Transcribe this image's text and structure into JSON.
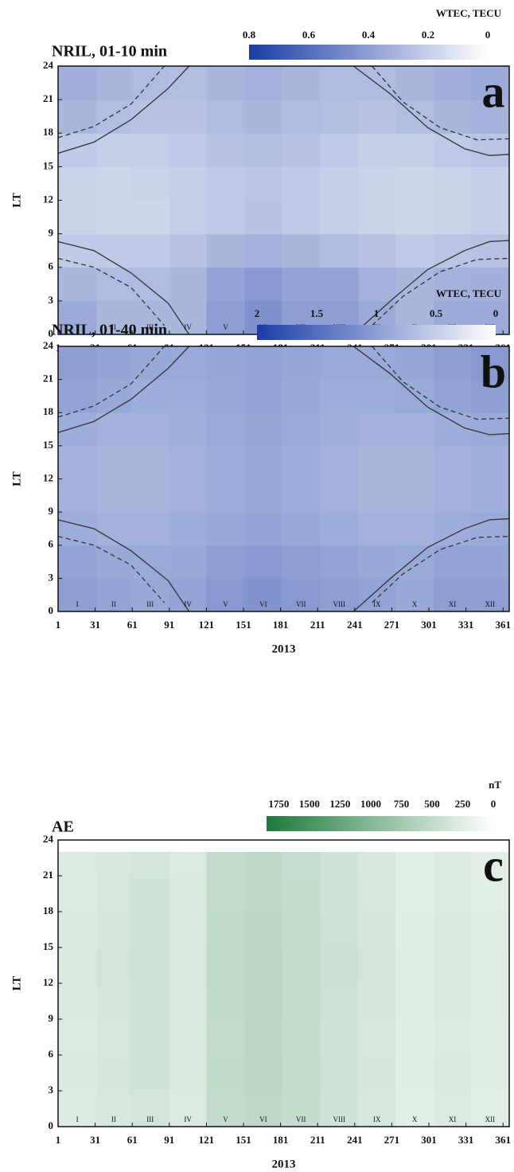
{
  "chart_data": [
    {
      "type": "heatmap",
      "title": "NRIL,  01-10 min",
      "panel_label": "a",
      "colorbar_title": "WTEC, TECU",
      "clim": [
        0.8,
        0
      ],
      "cticks": [
        0.8,
        0.6,
        0.4,
        0.2,
        0
      ],
      "colors": {
        "high": "#1a3da6",
        "low": "#ffffff"
      },
      "x_label": "2013",
      "y_label": "LT",
      "xlim": [
        1,
        366
      ],
      "ylim": [
        0,
        24
      ],
      "xticks": [
        1,
        31,
        61,
        91,
        121,
        151,
        181,
        211,
        241,
        271,
        301,
        331,
        361
      ],
      "yticks": [
        0,
        3,
        6,
        9,
        12,
        15,
        18,
        21,
        24
      ],
      "months": [
        "I",
        "II",
        "III",
        "IV",
        "V",
        "VI",
        "VII",
        "VIII",
        "IX",
        "X",
        "XI",
        "XII"
      ],
      "xbins": [
        1,
        32,
        60,
        91,
        121,
        152,
        182,
        213,
        244,
        274,
        305,
        335,
        366
      ],
      "ybins": [
        0,
        3,
        6,
        9,
        12,
        15,
        18,
        21,
        24
      ],
      "z": [
        [
          0.35,
          0.3,
          0.3,
          0.3,
          0.4,
          0.45,
          0.4,
          0.4,
          0.35,
          0.3,
          0.35,
          0.35
        ],
        [
          0.3,
          0.28,
          0.28,
          0.3,
          0.38,
          0.42,
          0.38,
          0.38,
          0.32,
          0.3,
          0.32,
          0.33
        ],
        [
          0.22,
          0.22,
          0.22,
          0.25,
          0.3,
          0.32,
          0.3,
          0.28,
          0.25,
          0.22,
          0.24,
          0.25
        ],
        [
          0.18,
          0.17,
          0.17,
          0.2,
          0.22,
          0.25,
          0.22,
          0.2,
          0.18,
          0.17,
          0.18,
          0.2
        ],
        [
          0.18,
          0.17,
          0.18,
          0.2,
          0.22,
          0.24,
          0.22,
          0.2,
          0.18,
          0.17,
          0.18,
          0.2
        ],
        [
          0.22,
          0.2,
          0.2,
          0.22,
          0.25,
          0.27,
          0.25,
          0.22,
          0.2,
          0.2,
          0.22,
          0.24
        ],
        [
          0.3,
          0.27,
          0.25,
          0.25,
          0.28,
          0.3,
          0.28,
          0.27,
          0.25,
          0.27,
          0.3,
          0.32
        ],
        [
          0.33,
          0.3,
          0.28,
          0.27,
          0.3,
          0.32,
          0.3,
          0.28,
          0.28,
          0.3,
          0.33,
          0.35
        ]
      ],
      "lines": [
        {
          "style": "solid",
          "x": [
            1,
            30,
            60,
            90,
            107
          ],
          "y": [
            16.2,
            17.2,
            19.2,
            22,
            24
          ]
        },
        {
          "style": "solid",
          "x": [
            240,
            270,
            300,
            330,
            350,
            366
          ],
          "y": [
            24,
            21.5,
            18.5,
            16.6,
            16,
            16.1
          ]
        },
        {
          "style": "solid",
          "x": [
            1,
            30,
            60,
            90,
            107
          ],
          "y": [
            8.3,
            7.5,
            5.5,
            2.8,
            0
          ]
        },
        {
          "style": "solid",
          "x": [
            240,
            270,
            300,
            330,
            350,
            366
          ],
          "y": [
            0,
            3,
            5.8,
            7.5,
            8.3,
            8.4
          ]
        },
        {
          "style": "dashed",
          "x": [
            1,
            30,
            60,
            87
          ],
          "y": [
            17.6,
            18.6,
            20.6,
            24
          ]
        },
        {
          "style": "dashed",
          "x": [
            255,
            280,
            310,
            340,
            366
          ],
          "y": [
            24,
            20.8,
            18.5,
            17.4,
            17.5
          ]
        },
        {
          "style": "dashed",
          "x": [
            1,
            30,
            60,
            87
          ],
          "y": [
            6.8,
            6,
            4.2,
            0.8
          ]
        },
        {
          "style": "dashed",
          "x": [
            255,
            280,
            310,
            340,
            366
          ],
          "y": [
            0.8,
            3.4,
            5.6,
            6.7,
            6.8
          ]
        }
      ]
    },
    {
      "type": "heatmap",
      "title": "NRIL,  01-40 min",
      "panel_label": "b",
      "colorbar_title": "WTEC, TECU",
      "clim": [
        2,
        0
      ],
      "cticks": [
        2,
        1.5,
        1,
        0.5,
        0
      ],
      "colors": {
        "high": "#1a3da6",
        "low": "#ffffff"
      },
      "x_label": "2013",
      "y_label": "LT",
      "xlim": [
        1,
        366
      ],
      "ylim": [
        0,
        24
      ],
      "xticks": [
        1,
        31,
        61,
        91,
        121,
        151,
        181,
        211,
        241,
        271,
        301,
        331,
        361
      ],
      "yticks": [
        0,
        3,
        6,
        9,
        12,
        15,
        18,
        21,
        24
      ],
      "months": [
        "I",
        "II",
        "III",
        "IV",
        "V",
        "VI",
        "VII",
        "VIII",
        "IX",
        "X",
        "XI",
        "XII"
      ],
      "xbins": [
        1,
        32,
        60,
        91,
        121,
        152,
        182,
        213,
        244,
        274,
        305,
        335,
        366
      ],
      "ybins": [
        0,
        3,
        6,
        9,
        12,
        15,
        18,
        21,
        24
      ],
      "z": [
        [
          1.0,
          0.95,
          0.9,
          0.95,
          1.05,
          1.1,
          1.05,
          1.0,
          0.95,
          0.9,
          1.0,
          1.0
        ],
        [
          0.95,
          0.9,
          0.88,
          0.9,
          1.0,
          1.05,
          1.0,
          0.95,
          0.9,
          0.88,
          0.95,
          0.95
        ],
        [
          0.85,
          0.8,
          0.8,
          0.85,
          0.9,
          0.95,
          0.9,
          0.85,
          0.8,
          0.8,
          0.85,
          0.88
        ],
        [
          0.8,
          0.75,
          0.75,
          0.8,
          0.85,
          0.9,
          0.85,
          0.8,
          0.75,
          0.75,
          0.8,
          0.82
        ],
        [
          0.8,
          0.75,
          0.75,
          0.8,
          0.85,
          0.9,
          0.85,
          0.8,
          0.75,
          0.75,
          0.8,
          0.82
        ],
        [
          0.85,
          0.8,
          0.8,
          0.82,
          0.88,
          0.92,
          0.88,
          0.82,
          0.8,
          0.8,
          0.85,
          0.88
        ],
        [
          0.95,
          0.9,
          0.85,
          0.85,
          0.9,
          0.95,
          0.9,
          0.85,
          0.85,
          0.88,
          0.95,
          1.0
        ],
        [
          1.0,
          0.95,
          0.9,
          0.88,
          0.92,
          0.95,
          0.92,
          0.88,
          0.88,
          0.92,
          1.0,
          1.05
        ]
      ],
      "lines": [
        {
          "style": "solid",
          "x": [
            1,
            30,
            60,
            90,
            107
          ],
          "y": [
            16.2,
            17.2,
            19.2,
            22,
            24
          ]
        },
        {
          "style": "solid",
          "x": [
            240,
            270,
            300,
            330,
            350,
            366
          ],
          "y": [
            24,
            21.5,
            18.5,
            16.6,
            16,
            16.1
          ]
        },
        {
          "style": "solid",
          "x": [
            1,
            30,
            60,
            90,
            107
          ],
          "y": [
            8.3,
            7.5,
            5.5,
            2.8,
            0
          ]
        },
        {
          "style": "solid",
          "x": [
            240,
            270,
            300,
            330,
            350,
            366
          ],
          "y": [
            0,
            3,
            5.8,
            7.5,
            8.3,
            8.4
          ]
        },
        {
          "style": "dashed",
          "x": [
            1,
            30,
            60,
            87
          ],
          "y": [
            17.6,
            18.6,
            20.6,
            24
          ]
        },
        {
          "style": "dashed",
          "x": [
            255,
            280,
            310,
            340,
            366
          ],
          "y": [
            24,
            20.8,
            18.5,
            17.4,
            17.5
          ]
        },
        {
          "style": "dashed",
          "x": [
            1,
            30,
            60,
            87
          ],
          "y": [
            6.8,
            6,
            4.2,
            0.8
          ]
        },
        {
          "style": "dashed",
          "x": [
            255,
            280,
            310,
            340,
            366
          ],
          "y": [
            0.8,
            3.4,
            5.6,
            6.7,
            6.8
          ]
        }
      ]
    },
    {
      "type": "heatmap",
      "title": "AE",
      "panel_label": "c",
      "colorbar_title": "nT",
      "clim": [
        1850,
        0
      ],
      "cticks": [
        1750,
        1500,
        1250,
        1000,
        750,
        500,
        250,
        0
      ],
      "colors": {
        "high": "#1b7a3c",
        "low": "#ffffff"
      },
      "x_label": "2013",
      "y_label": "LT",
      "xlim": [
        1,
        366
      ],
      "ylim": [
        0,
        24
      ],
      "xticks": [
        1,
        31,
        61,
        91,
        121,
        151,
        181,
        211,
        241,
        271,
        301,
        331,
        361
      ],
      "yticks": [
        0,
        3,
        6,
        9,
        12,
        15,
        18,
        21,
        24
      ],
      "months": [
        "I",
        "II",
        "III",
        "IV",
        "V",
        "VI",
        "VII",
        "VIII",
        "IX",
        "X",
        "XI",
        "XII"
      ],
      "xbins": [
        1,
        32,
        60,
        91,
        121,
        152,
        182,
        213,
        244,
        274,
        305,
        335,
        366
      ],
      "ybins": [
        0,
        3,
        6,
        9,
        12,
        15,
        18,
        21,
        23
      ],
      "z": [
        [
          280,
          330,
          360,
          290,
          480,
          540,
          470,
          390,
          330,
          240,
          290,
          240
        ],
        [
          300,
          350,
          380,
          300,
          500,
          560,
          480,
          400,
          350,
          250,
          300,
          250
        ],
        [
          290,
          340,
          370,
          300,
          490,
          550,
          480,
          390,
          340,
          250,
          290,
          250
        ],
        [
          300,
          350,
          380,
          310,
          500,
          560,
          490,
          400,
          350,
          260,
          300,
          260
        ],
        [
          310,
          360,
          390,
          310,
          510,
          560,
          490,
          410,
          360,
          260,
          310,
          260
        ],
        [
          300,
          350,
          380,
          300,
          500,
          550,
          480,
          400,
          350,
          250,
          300,
          250
        ],
        [
          290,
          340,
          370,
          300,
          490,
          540,
          470,
          390,
          340,
          240,
          290,
          240
        ],
        [
          280,
          330,
          360,
          290,
          480,
          530,
          460,
          380,
          330,
          240,
          280,
          230
        ]
      ],
      "lines": []
    }
  ]
}
